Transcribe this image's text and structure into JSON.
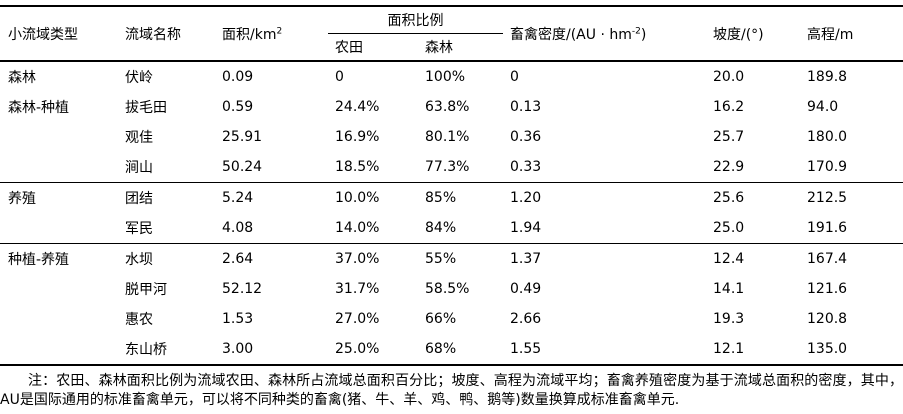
{
  "table": {
    "headers": {
      "col_type": "小流域类型",
      "col_name": "流域名称",
      "col_area_prefix": "面积/km",
      "col_area_sup": "2",
      "col_ratio_group": "面积比例",
      "col_farmland": "农田",
      "col_forest": "森林",
      "col_density_prefix": "畜禽密度/(AU · hm",
      "col_density_sup": "-2",
      "col_density_suffix": ")",
      "col_slope": "坡度/(°)",
      "col_elevation": "高程/m"
    },
    "rows": [
      {
        "type": "森林",
        "name": "伏岭",
        "area": "0.09",
        "farmland": "0",
        "forest": "100%",
        "density": "0",
        "slope": "20.0",
        "elevation": "189.8"
      },
      {
        "type": "森林-种植",
        "name": "拔毛田",
        "area": "0.59",
        "farmland": "24.4%",
        "forest": "63.8%",
        "density": "0.13",
        "slope": "16.2",
        "elevation": "94.0"
      },
      {
        "type": "",
        "name": "观佳",
        "area": "25.91",
        "farmland": "16.9%",
        "forest": "80.1%",
        "density": "0.36",
        "slope": "25.7",
        "elevation": "180.0"
      },
      {
        "type": "",
        "name": "涧山",
        "area": "50.24",
        "farmland": "18.5%",
        "forest": "77.3%",
        "density": "0.33",
        "slope": "22.9",
        "elevation": "170.9",
        "section_end": true
      },
      {
        "type": "养殖",
        "name": "团结",
        "area": "5.24",
        "farmland": "10.0%",
        "forest": "85%",
        "density": "1.20",
        "slope": "25.6",
        "elevation": "212.5"
      },
      {
        "type": "",
        "name": "军民",
        "area": "4.08",
        "farmland": "14.0%",
        "forest": "84%",
        "density": "1.94",
        "slope": "25.0",
        "elevation": "191.6",
        "section_end": true
      },
      {
        "type": "种植-养殖",
        "name": "水坝",
        "area": "2.64",
        "farmland": "37.0%",
        "forest": "55%",
        "density": "1.37",
        "slope": "12.4",
        "elevation": "167.4"
      },
      {
        "type": "",
        "name": "脱甲河",
        "area": "52.12",
        "farmland": "31.7%",
        "forest": "58.5%",
        "density": "0.49",
        "slope": "14.1",
        "elevation": "121.6"
      },
      {
        "type": "",
        "name": "惠农",
        "area": "1.53",
        "farmland": "27.0%",
        "forest": "66%",
        "density": "2.66",
        "slope": "19.3",
        "elevation": "120.8"
      },
      {
        "type": "",
        "name": "东山桥",
        "area": "3.00",
        "farmland": "25.0%",
        "forest": "68%",
        "density": "1.55",
        "slope": "12.1",
        "elevation": "135.0"
      }
    ],
    "note": "注：农田、森林面积比例为流域农田、森林所占流域总面积百分比；坡度、高程为流域平均；畜禽养殖密度为基于流域总面积的密度，其中，AU是国际通用的标准畜禽单元，可以将不同种类的畜禽(猪、牛、羊、鸡、鸭、鹅等)数量换算成标准畜禽单元."
  }
}
